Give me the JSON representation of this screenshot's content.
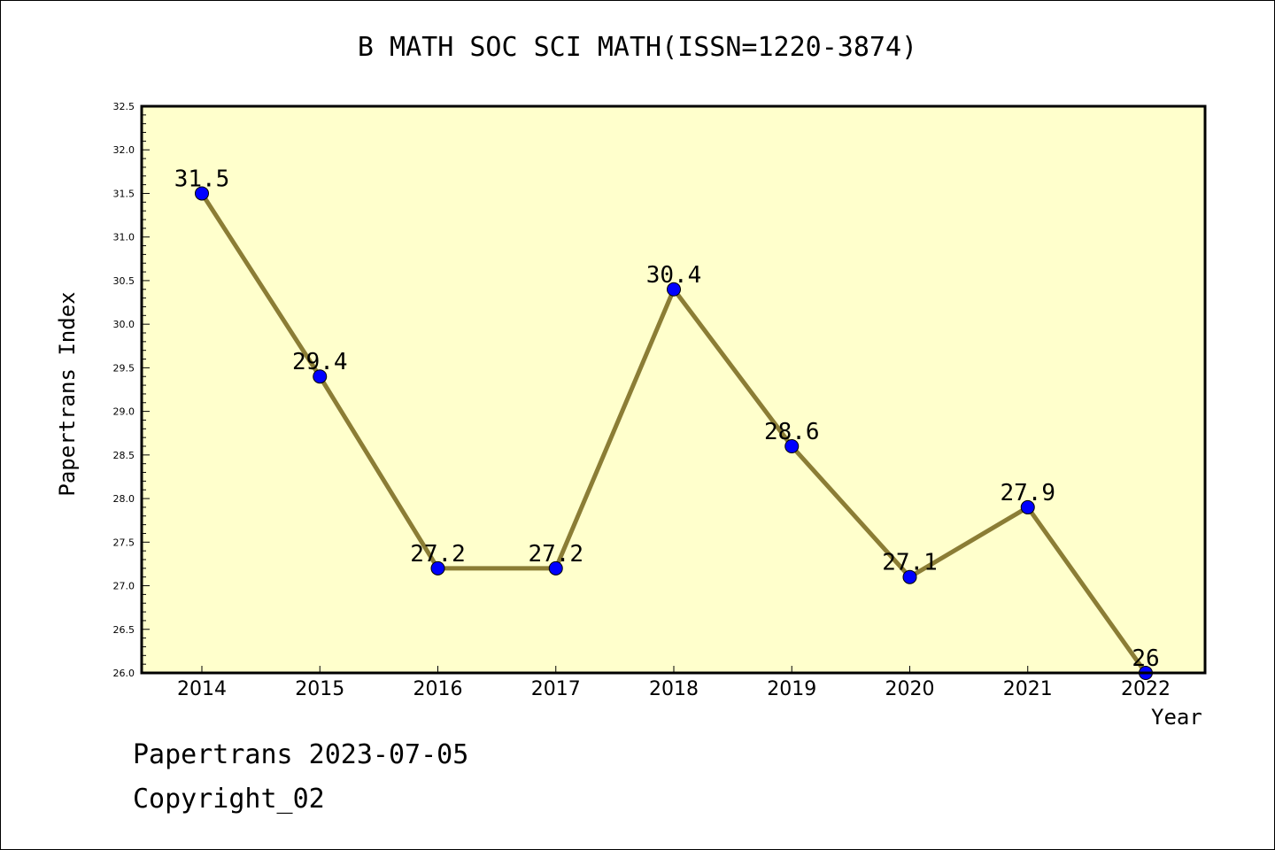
{
  "chart_data": {
    "type": "line",
    "title": "B MATH SOC SCI MATH(ISSN=1220-3874)",
    "xlabel": "Year",
    "ylabel": "Papertrans Index",
    "categories": [
      "2014",
      "2015",
      "2016",
      "2017",
      "2018",
      "2019",
      "2020",
      "2021",
      "2022"
    ],
    "series": [
      {
        "values": [
          31.5,
          29.4,
          27.2,
          27.2,
          30.4,
          28.6,
          27.1,
          27.9,
          26
        ]
      }
    ],
    "data_labels": [
      "31.5",
      "29.4",
      "27.2",
      "27.2",
      "30.4",
      "28.6",
      "27.1",
      "27.9",
      "26"
    ],
    "ylim": [
      26.0,
      32.5
    ],
    "yticks": [
      "26.0",
      "26.5",
      "27.0",
      "27.5",
      "28.0",
      "28.5",
      "29.0",
      "29.5",
      "30.0",
      "30.5",
      "31.0",
      "31.5",
      "32.0",
      "32.5"
    ],
    "grid": false,
    "colors": {
      "plot_background": "#ffffcc",
      "line": "#8b7d35",
      "marker": "#0000ff"
    }
  },
  "footer": {
    "line1": "Papertrans 2023-07-05",
    "line2": "Copyright_02"
  }
}
